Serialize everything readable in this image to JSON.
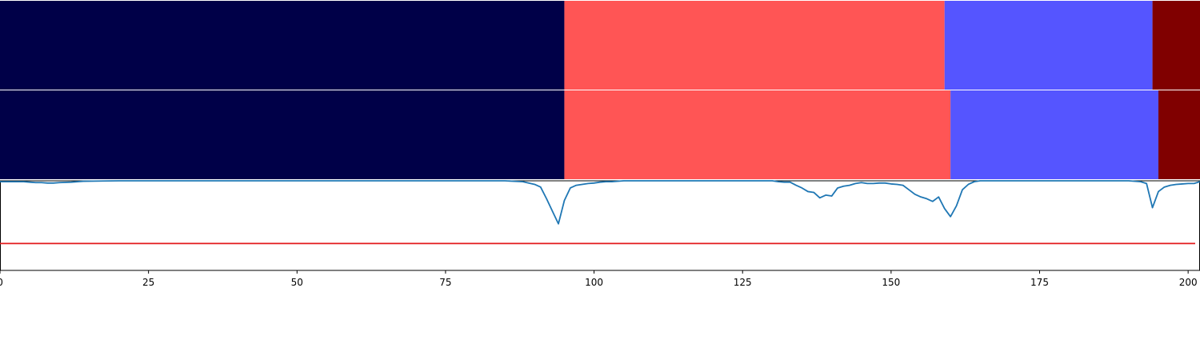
{
  "chart_data": {
    "type": "segmentation-timeline",
    "xlim": [
      0,
      202
    ],
    "x_ticks": [
      "0",
      "25",
      "50",
      "75",
      "100",
      "125",
      "150",
      "175",
      "200"
    ],
    "colors": {
      "label_0": "#000048",
      "label_1": "#ff5555",
      "label_2": "#5555ff",
      "label_3": "#800000",
      "curve": "#1f77b4",
      "threshold": "#e31a1c"
    },
    "segment_rows": [
      {
        "segments": [
          {
            "start": 0,
            "end": 95,
            "label": 0
          },
          {
            "start": 95,
            "end": 159,
            "label": 1
          },
          {
            "start": 159,
            "end": 194,
            "label": 2
          },
          {
            "start": 194,
            "end": 202,
            "label": 3
          }
        ]
      },
      {
        "segments": [
          {
            "start": 0,
            "end": 95,
            "label": 0
          },
          {
            "start": 95,
            "end": 160,
            "label": 1
          },
          {
            "start": 160,
            "end": 195,
            "label": 2
          },
          {
            "start": 195,
            "end": 202,
            "label": 3
          }
        ]
      }
    ],
    "confidence_plot": {
      "ylim": [
        0,
        1
      ],
      "threshold": 0.3,
      "x": [
        0,
        1,
        2,
        3,
        4,
        5,
        6,
        7,
        8,
        9,
        10,
        12,
        14,
        20,
        30,
        40,
        50,
        60,
        70,
        80,
        85,
        88,
        90,
        91,
        92,
        93,
        94,
        95,
        96,
        97,
        98,
        99,
        100,
        101,
        102,
        103,
        105,
        108,
        110,
        120,
        130,
        131,
        132,
        133,
        134,
        135,
        136,
        137,
        138,
        139,
        140,
        141,
        142,
        143,
        144,
        145,
        146,
        147,
        148,
        149,
        150,
        151,
        152,
        153,
        154,
        155,
        156,
        157,
        158,
        159,
        160,
        161,
        162,
        163,
        164,
        165,
        170,
        180,
        190,
        192,
        193,
        194,
        195,
        196,
        197,
        198,
        199,
        200,
        201,
        202
      ],
      "y": [
        0.99,
        0.99,
        0.99,
        0.99,
        0.99,
        0.985,
        0.98,
        0.98,
        0.975,
        0.975,
        0.98,
        0.985,
        0.995,
        1.0,
        1.0,
        1.0,
        1.0,
        1.0,
        1.0,
        1.0,
        1.0,
        0.99,
        0.96,
        0.93,
        0.8,
        0.66,
        0.52,
        0.78,
        0.92,
        0.95,
        0.96,
        0.97,
        0.975,
        0.985,
        0.99,
        0.99,
        1.0,
        1.0,
        1.0,
        1.0,
        1.0,
        0.99,
        0.985,
        0.985,
        0.95,
        0.92,
        0.88,
        0.87,
        0.81,
        0.84,
        0.83,
        0.92,
        0.94,
        0.95,
        0.97,
        0.98,
        0.97,
        0.97,
        0.975,
        0.975,
        0.965,
        0.96,
        0.95,
        0.9,
        0.85,
        0.82,
        0.8,
        0.77,
        0.82,
        0.69,
        0.6,
        0.72,
        0.9,
        0.96,
        0.99,
        1.0,
        1.0,
        1.0,
        1.0,
        0.99,
        0.97,
        0.7,
        0.88,
        0.93,
        0.95,
        0.96,
        0.965,
        0.97,
        0.97,
        0.99
      ]
    }
  }
}
